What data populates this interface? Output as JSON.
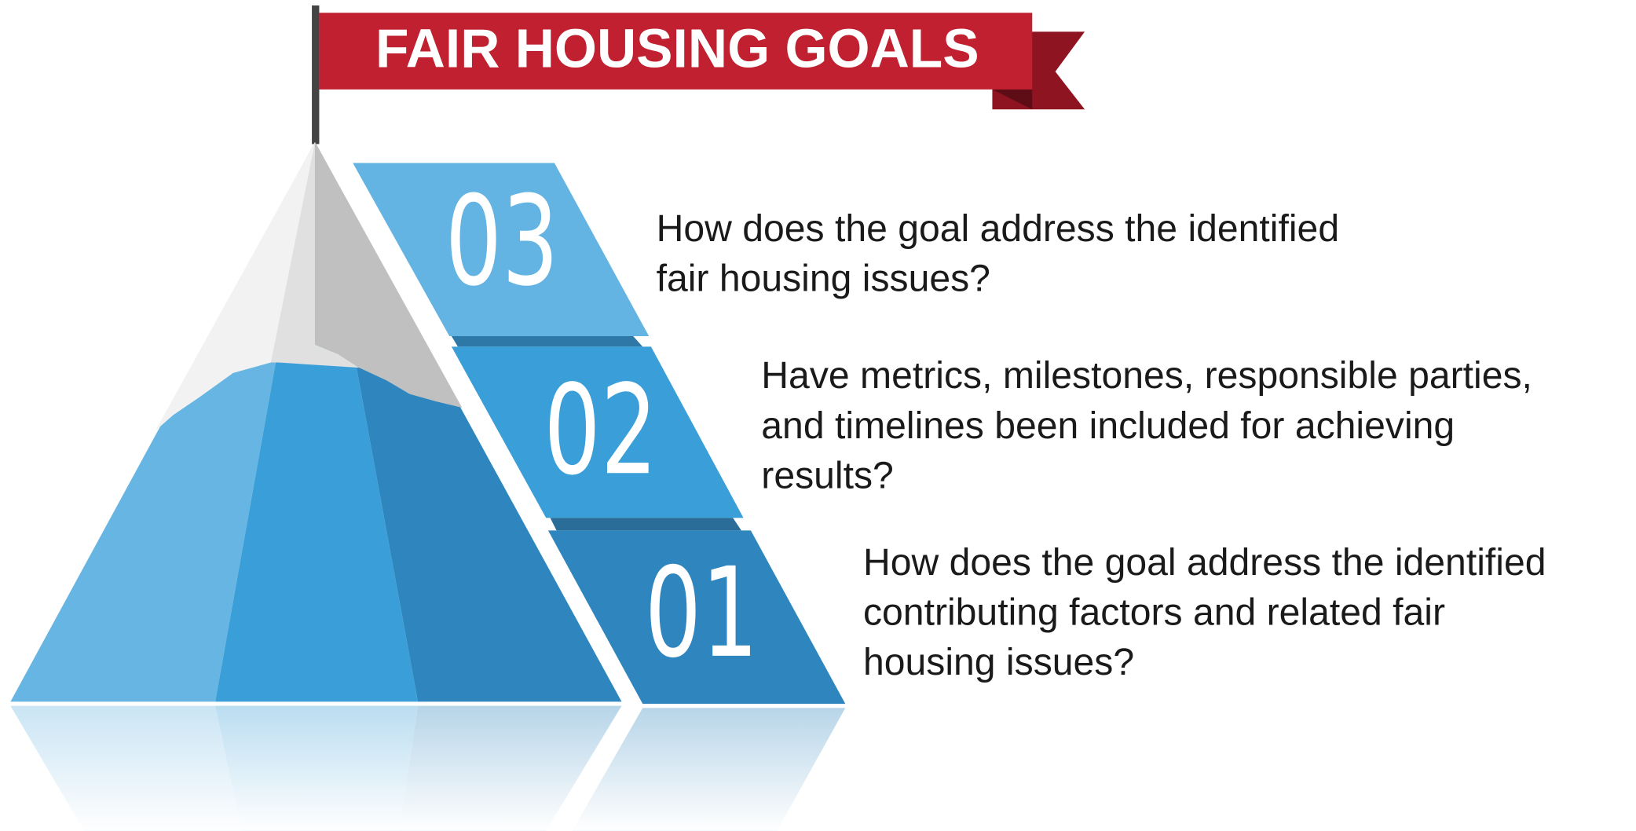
{
  "title": "FAIR HOUSING GOALS",
  "steps": [
    {
      "number": "03",
      "lines": [
        "How does the goal address the identified",
        "fair housing issues?"
      ]
    },
    {
      "number": "02",
      "lines": [
        "Have metrics, milestones, responsible parties,",
        "and timelines been included for achieving",
        "results?"
      ]
    },
    {
      "number": "01",
      "lines": [
        "How does the goal address the identified",
        "contributing factors and related fair",
        "housing issues?"
      ]
    }
  ]
}
